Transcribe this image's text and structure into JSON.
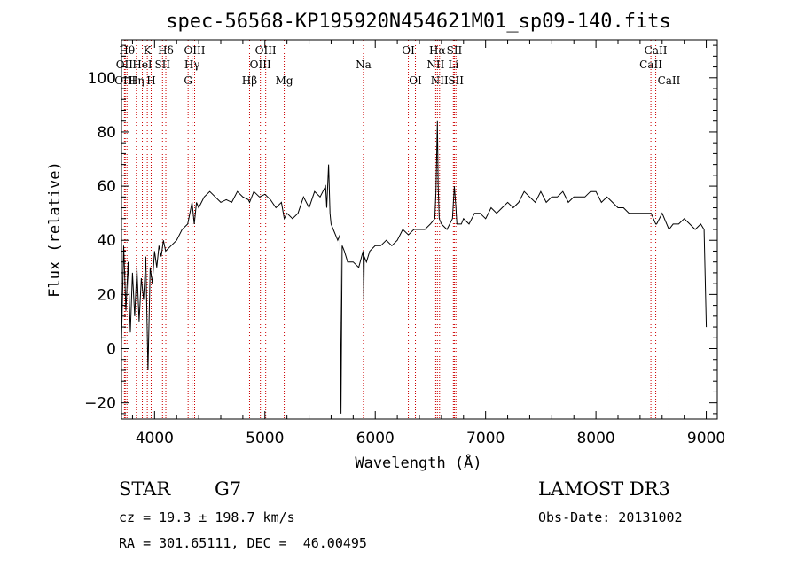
{
  "title": "spec-56568-KP195920N454621M01_sp09-140.fits",
  "info": {
    "class": "STAR",
    "subclass": "G7",
    "survey": "LAMOST DR3",
    "cz": "cz = 19.3 ± 198.7 km/s",
    "obs_date": "Obs-Date: 20131002",
    "coords": "RA = 301.65111, DEC =  46.00495"
  },
  "chart_data": {
    "type": "line",
    "xlabel": "Wavelength (Å)",
    "ylabel": "Flux (relative)",
    "xlim": [
      3700,
      9100
    ],
    "ylim": [
      -26,
      114
    ],
    "xticks": [
      4000,
      5000,
      6000,
      7000,
      8000,
      9000
    ],
    "yticks": [
      -20,
      0,
      20,
      40,
      60,
      80,
      100
    ],
    "grid": false,
    "line_color": "#000000",
    "marker_color": "#cc0000",
    "series": [
      {
        "x": [
          3700,
          3720,
          3740,
          3760,
          3780,
          3800,
          3820,
          3840,
          3860,
          3880,
          3900,
          3920,
          3940,
          3960,
          3980,
          4000,
          4020,
          4040,
          4060,
          4080,
          4100,
          4150,
          4200,
          4250,
          4300,
          4340,
          4360,
          4380,
          4400,
          4450,
          4500,
          4550,
          4600,
          4650,
          4700,
          4750,
          4800,
          4850,
          4861,
          4900,
          4950,
          5000,
          5050,
          5100,
          5150,
          5175,
          5200,
          5250,
          5300,
          5350,
          5400,
          5450,
          5500,
          5550,
          5560,
          5577,
          5590,
          5600,
          5620,
          5640,
          5660,
          5680,
          5690,
          5700,
          5720,
          5750,
          5800,
          5850,
          5890,
          5896,
          5900,
          5920,
          5950,
          6000,
          6050,
          6100,
          6150,
          6200,
          6250,
          6300,
          6350,
          6400,
          6450,
          6500,
          6540,
          6550,
          6563,
          6570,
          6580,
          6600,
          6650,
          6700,
          6717,
          6731,
          6740,
          6780,
          6800,
          6850,
          6900,
          6950,
          7000,
          7050,
          7100,
          7150,
          7200,
          7250,
          7300,
          7350,
          7400,
          7450,
          7500,
          7550,
          7600,
          7650,
          7700,
          7750,
          7800,
          7850,
          7900,
          7950,
          8000,
          8050,
          8100,
          8150,
          8200,
          8250,
          8300,
          8350,
          8400,
          8450,
          8500,
          8542,
          8550,
          8600,
          8662,
          8700,
          8750,
          8800,
          8850,
          8900,
          8950,
          8980,
          9000
        ],
        "y": [
          2,
          38,
          14,
          32,
          6,
          28,
          12,
          30,
          10,
          26,
          18,
          34,
          -8,
          30,
          24,
          36,
          30,
          38,
          34,
          40,
          36,
          38,
          40,
          44,
          46,
          54,
          46,
          54,
          52,
          56,
          58,
          56,
          54,
          55,
          54,
          58,
          56,
          55,
          54,
          58,
          56,
          57,
          55,
          52,
          54,
          48,
          50,
          48,
          50,
          56,
          52,
          58,
          56,
          60,
          52,
          68,
          50,
          46,
          44,
          42,
          40,
          42,
          -24,
          38,
          36,
          32,
          32,
          30,
          36,
          18,
          34,
          32,
          36,
          38,
          38,
          40,
          38,
          40,
          44,
          42,
          44,
          44,
          44,
          46,
          48,
          58,
          84,
          60,
          48,
          46,
          44,
          48,
          60,
          52,
          46,
          46,
          48,
          46,
          50,
          50,
          48,
          52,
          50,
          52,
          54,
          52,
          54,
          58,
          56,
          54,
          58,
          54,
          56,
          56,
          58,
          54,
          56,
          56,
          56,
          58,
          58,
          54,
          56,
          54,
          52,
          52,
          50,
          50,
          50,
          50,
          50,
          46,
          46,
          50,
          44,
          46,
          46,
          48,
          46,
          44,
          46,
          44,
          8
        ]
      }
    ],
    "lines": [
      {
        "wave": 3750,
        "label": "Hθ",
        "row": 1
      },
      {
        "wave": 3727,
        "label": "OII",
        "row": 2
      },
      {
        "wave": 3734,
        "label": "OIII",
        "row": 3
      },
      {
        "wave": 3835,
        "label": "Hη",
        "row": 3
      },
      {
        "wave": 3889,
        "label": "HeI",
        "row": 2
      },
      {
        "wave": 3934,
        "label": "K",
        "row": 1
      },
      {
        "wave": 3969,
        "label": "H",
        "row": 3
      },
      {
        "wave": 4072,
        "label": "SII",
        "row": 2
      },
      {
        "wave": 4102,
        "label": "Hδ",
        "row": 1
      },
      {
        "wave": 4304,
        "label": "G",
        "row": 3
      },
      {
        "wave": 4340,
        "label": "Hγ",
        "row": 2
      },
      {
        "wave": 4363,
        "label": "OIII",
        "row": 1
      },
      {
        "wave": 4861,
        "label": "Hβ",
        "row": 3
      },
      {
        "wave": 4959,
        "label": "OIII",
        "row": 2
      },
      {
        "wave": 5007,
        "label": "OIII",
        "row": 1
      },
      {
        "wave": 5175,
        "label": "Mg",
        "row": 3
      },
      {
        "wave": 5893,
        "label": "Na",
        "row": 2
      },
      {
        "wave": 6300,
        "label": "OI",
        "row": 1
      },
      {
        "wave": 6364,
        "label": "OI",
        "row": 3
      },
      {
        "wave": 6548,
        "label": "NII",
        "row": 2
      },
      {
        "wave": 6563,
        "label": "Hα",
        "row": 1
      },
      {
        "wave": 6583,
        "label": "NII",
        "row": 3
      },
      {
        "wave": 6708,
        "label": "Li",
        "row": 2
      },
      {
        "wave": 6717,
        "label": "SII",
        "row": 1
      },
      {
        "wave": 6731,
        "label": "SII",
        "row": 3
      },
      {
        "wave": 8498,
        "label": "CaII",
        "row": 2
      },
      {
        "wave": 8542,
        "label": "CaII",
        "row": 1
      },
      {
        "wave": 8662,
        "label": "CaII",
        "row": 3
      }
    ]
  }
}
